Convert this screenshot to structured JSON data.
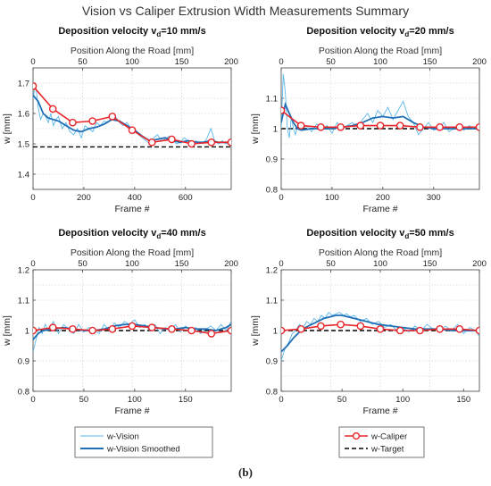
{
  "figure_title": "Vision vs Caliper Extrusion Width Measurements Summary",
  "caption": "(b)",
  "legends": [
    {
      "items": [
        {
          "label": "w-Vision",
          "color": "#5bb8ea",
          "style": "thin-line"
        },
        {
          "label": "w-Vision Smoothed",
          "color": "#1f6fb5",
          "style": "thick-line"
        }
      ]
    },
    {
      "items": [
        {
          "label": "w-Caliper",
          "color": "#e8262a",
          "style": "line-circle"
        },
        {
          "label": "w-Target",
          "color": "#000000",
          "style": "dashed"
        }
      ]
    }
  ],
  "colors": {
    "vision": "#5bb8ea",
    "smoothed": "#1f6fb5",
    "caliper": "#e8262a",
    "target": "#000000",
    "grid": "#d9d9d9"
  },
  "chart_data": [
    {
      "type": "line",
      "title": "Deposition velocity v_d=10 mm/s",
      "title_main": "Deposition velocity v",
      "title_sub": "d",
      "title_rest": "=10 mm/s",
      "xlabel": "Frame #",
      "ylabel": "w [mm]",
      "top_xlabel": "Position Along the Road [mm]",
      "xlim": [
        0,
        780
      ],
      "ylim": [
        1.35,
        1.75
      ],
      "xticks": [
        0,
        200,
        400,
        600
      ],
      "yticks": [
        1.4,
        1.5,
        1.6,
        1.7
      ],
      "ytick_labels": [
        "1.4",
        "1.5",
        "1.6",
        "1.7"
      ],
      "top_xticks": [
        0,
        50,
        100,
        150,
        200
      ],
      "top_xmax": 200,
      "target": 1.49,
      "caliper": {
        "x": [
          0,
          78,
          156,
          234,
          312,
          390,
          468,
          546,
          624,
          702,
          780
        ],
        "y": [
          1.69,
          1.615,
          1.57,
          1.575,
          1.59,
          1.545,
          1.505,
          1.515,
          1.5,
          1.505,
          1.505
        ]
      },
      "smoothed": {
        "x": [
          0,
          20,
          40,
          60,
          80,
          100,
          130,
          160,
          190,
          220,
          250,
          280,
          310,
          340,
          370,
          400,
          430,
          460,
          490,
          520,
          550,
          580,
          610,
          640,
          670,
          700,
          730,
          760,
          780
        ],
        "y": [
          1.66,
          1.64,
          1.6,
          1.585,
          1.58,
          1.575,
          1.56,
          1.545,
          1.54,
          1.55,
          1.555,
          1.565,
          1.58,
          1.575,
          1.56,
          1.545,
          1.525,
          1.51,
          1.515,
          1.52,
          1.51,
          1.505,
          1.51,
          1.505,
          1.505,
          1.51,
          1.505,
          1.505,
          1.505
        ]
      },
      "vision": {
        "x": [
          0,
          10,
          20,
          30,
          40,
          50,
          60,
          70,
          80,
          90,
          100,
          115,
          130,
          145,
          160,
          175,
          190,
          205,
          220,
          235,
          250,
          265,
          280,
          295,
          310,
          325,
          340,
          355,
          370,
          385,
          400,
          415,
          430,
          445,
          460,
          475,
          490,
          505,
          520,
          535,
          550,
          565,
          580,
          595,
          610,
          625,
          640,
          655,
          670,
          685,
          700,
          715,
          730,
          745,
          760,
          780
        ],
        "y": [
          1.65,
          1.7,
          1.62,
          1.58,
          1.6,
          1.59,
          1.57,
          1.6,
          1.56,
          1.58,
          1.59,
          1.55,
          1.57,
          1.54,
          1.53,
          1.55,
          1.52,
          1.56,
          1.55,
          1.54,
          1.57,
          1.56,
          1.575,
          1.57,
          1.585,
          1.59,
          1.57,
          1.56,
          1.57,
          1.55,
          1.55,
          1.53,
          1.52,
          1.51,
          1.5,
          1.52,
          1.53,
          1.51,
          1.515,
          1.525,
          1.51,
          1.5,
          1.505,
          1.52,
          1.51,
          1.5,
          1.51,
          1.505,
          1.5,
          1.52,
          1.55,
          1.51,
          1.5,
          1.51,
          1.5,
          1.505
        ]
      }
    },
    {
      "type": "line",
      "title": "Deposition velocity v_d=20 mm/s",
      "title_main": "Deposition velocity v",
      "title_sub": "d",
      "title_rest": "=20 mm/s",
      "xlabel": "Frame #",
      "ylabel": "w [mm]",
      "top_xlabel": "Position Along the Road [mm]",
      "xlim": [
        0,
        390
      ],
      "ylim": [
        0.8,
        1.2
      ],
      "xticks": [
        0,
        100,
        200,
        300
      ],
      "yticks": [
        0.8,
        0.9,
        1,
        1.1
      ],
      "ytick_labels": [
        "0.8",
        "0.9",
        "1",
        "1.1"
      ],
      "top_xticks": [
        0,
        50,
        100,
        150,
        200
      ],
      "top_xmax": 200,
      "target": 1.0,
      "caliper": {
        "x": [
          0,
          39,
          78,
          117,
          156,
          195,
          234,
          273,
          312,
          351,
          390
        ],
        "y": [
          1.06,
          1.01,
          1.005,
          1.005,
          1.01,
          1.01,
          1.01,
          1.005,
          1.005,
          1.005,
          1.005
        ]
      },
      "smoothed": {
        "x": [
          0,
          8,
          16,
          24,
          32,
          40,
          60,
          80,
          100,
          120,
          140,
          160,
          180,
          200,
          220,
          240,
          260,
          280,
          300,
          320,
          340,
          360,
          390
        ],
        "y": [
          1.02,
          1.08,
          1.05,
          1.02,
          1.0,
          0.995,
          1.0,
          1.0,
          1.0,
          1.005,
          1.01,
          1.02,
          1.035,
          1.04,
          1.035,
          1.04,
          1.02,
          1.005,
          1.0,
          1.0,
          1.0,
          1.0,
          1.0
        ]
      },
      "vision": {
        "x": [
          0,
          4,
          8,
          12,
          16,
          20,
          24,
          28,
          32,
          36,
          40,
          50,
          60,
          70,
          80,
          90,
          100,
          110,
          120,
          130,
          140,
          150,
          160,
          170,
          180,
          190,
          200,
          210,
          220,
          230,
          240,
          250,
          260,
          270,
          280,
          290,
          300,
          310,
          320,
          330,
          340,
          350,
          360,
          370,
          380,
          390
        ],
        "y": [
          1.0,
          1.18,
          1.12,
          1.0,
          0.97,
          1.04,
          1.0,
          0.98,
          1.01,
          0.995,
          1.0,
          1.01,
          0.99,
          1.015,
          0.995,
          1.01,
          0.985,
          1.02,
          1.0,
          1.01,
          1.02,
          1.005,
          1.03,
          1.05,
          1.02,
          1.06,
          1.04,
          1.07,
          1.03,
          1.06,
          1.09,
          1.04,
          1.02,
          0.98,
          1.0,
          1.02,
          0.995,
          1.0,
          1.02,
          0.99,
          1.0,
          1.005,
          0.995,
          1.01,
          1.0,
          1.005
        ]
      }
    },
    {
      "type": "line",
      "title": "Deposition velocity v_d=40 mm/s",
      "title_main": "Deposition velocity v",
      "title_sub": "d",
      "title_rest": "=40 mm/s",
      "xlabel": "Frame #",
      "ylabel": "w [mm]",
      "top_xlabel": "Position Along the Road [mm]",
      "xlim": [
        0,
        195
      ],
      "ylim": [
        0.8,
        1.2
      ],
      "xticks": [
        0,
        50,
        100,
        150
      ],
      "yticks": [
        0.8,
        0.9,
        1,
        1.1,
        1.2
      ],
      "ytick_labels": [
        "0.8",
        "0.9",
        "1",
        "1.1",
        "1.2"
      ],
      "top_xticks": [
        0,
        50,
        100,
        150,
        200
      ],
      "top_xmax": 200,
      "target": 1.0,
      "caliper": {
        "x": [
          0,
          19.5,
          39,
          58.5,
          78,
          97.5,
          117,
          136.5,
          156,
          175.5,
          195
        ],
        "y": [
          1.0,
          1.01,
          1.005,
          1.0,
          1.005,
          1.015,
          1.01,
          1.005,
          1.0,
          0.99,
          1.0
        ]
      },
      "smoothed": {
        "x": [
          0,
          5,
          10,
          20,
          30,
          40,
          50,
          60,
          70,
          80,
          90,
          100,
          110,
          120,
          130,
          140,
          150,
          160,
          170,
          180,
          190,
          195
        ],
        "y": [
          0.97,
          0.99,
          1.0,
          1.005,
          1.01,
          1.005,
          1.0,
          1.0,
          1.005,
          1.015,
          1.02,
          1.02,
          1.015,
          1.01,
          1.005,
          1.005,
          1.01,
          1.005,
          1.005,
          1.0,
          1.01,
          1.02
        ]
      },
      "vision": {
        "x": [
          0,
          3,
          6,
          9,
          12,
          15,
          20,
          25,
          30,
          35,
          40,
          45,
          50,
          55,
          60,
          65,
          70,
          75,
          80,
          85,
          90,
          95,
          100,
          105,
          110,
          115,
          120,
          125,
          130,
          135,
          140,
          145,
          150,
          155,
          160,
          165,
          170,
          175,
          180,
          185,
          190,
          195
        ],
        "y": [
          0.93,
          0.97,
          1.01,
          0.99,
          1.02,
          1.0,
          1.03,
          0.99,
          1.02,
          1.005,
          0.99,
          1.02,
          0.995,
          1.01,
          1.0,
          0.99,
          1.02,
          1.0,
          1.025,
          1.01,
          1.03,
          1.02,
          1.035,
          1.01,
          1.02,
          1.0,
          1.02,
          0.99,
          1.01,
          1.0,
          1.02,
          0.995,
          1.015,
          1.0,
          1.01,
          0.99,
          1.005,
          1.015,
          1.0,
          1.02,
          1.0,
          1.03
        ]
      }
    },
    {
      "type": "line",
      "title": "Deposition velocity v_d=50 mm/s",
      "title_main": "Deposition velocity v",
      "title_sub": "d",
      "title_rest": "=50 mm/s",
      "xlabel": "Frame #",
      "ylabel": "w [mm]",
      "top_xlabel": "Position Along the Road [mm]",
      "xlim": [
        0,
        163
      ],
      "ylim": [
        0.8,
        1.2
      ],
      "xticks": [
        0,
        50,
        100,
        150
      ],
      "yticks": [
        0.8,
        0.9,
        1,
        1.1,
        1.2
      ],
      "ytick_labels": [
        "0.8",
        "0.9",
        "1",
        "1.1",
        "1.2"
      ],
      "top_xticks": [
        0,
        50,
        100,
        150,
        200
      ],
      "top_xmax": 200,
      "target": 1.0,
      "caliper": {
        "x": [
          0,
          16.3,
          32.6,
          48.9,
          65.2,
          81.5,
          97.8,
          114.1,
          130.4,
          146.7,
          163
        ],
        "y": [
          1.0,
          1.005,
          1.015,
          1.02,
          1.015,
          1.005,
          1.0,
          1.0,
          1.005,
          1.005,
          1.0
        ]
      },
      "smoothed": {
        "x": [
          0,
          5,
          10,
          15,
          20,
          25,
          30,
          35,
          40,
          45,
          50,
          55,
          60,
          70,
          80,
          90,
          100,
          110,
          120,
          130,
          140,
          150,
          160,
          163
        ],
        "y": [
          0.93,
          0.95,
          0.975,
          0.995,
          1.01,
          1.02,
          1.03,
          1.04,
          1.045,
          1.05,
          1.05,
          1.045,
          1.04,
          1.03,
          1.02,
          1.015,
          1.01,
          1.005,
          1.005,
          1.005,
          1.0,
          1.0,
          1.0,
          1.0
        ]
      },
      "vision": {
        "x": [
          0,
          3,
          6,
          9,
          12,
          15,
          18,
          21,
          24,
          27,
          30,
          33,
          36,
          39,
          42,
          45,
          48,
          51,
          54,
          57,
          60,
          65,
          70,
          75,
          80,
          85,
          90,
          95,
          100,
          105,
          110,
          115,
          120,
          125,
          130,
          135,
          140,
          145,
          150,
          155,
          160,
          163
        ],
        "y": [
          0.9,
          0.94,
          0.96,
          0.99,
          1.0,
          1.02,
          1.01,
          1.03,
          1.02,
          1.04,
          1.03,
          1.05,
          1.04,
          1.06,
          1.05,
          1.055,
          1.06,
          1.05,
          1.055,
          1.045,
          1.05,
          1.03,
          1.04,
          1.02,
          1.03,
          1.01,
          1.02,
          1.0,
          1.01,
          0.995,
          1.015,
          1.0,
          1.02,
          1.005,
          1.0,
          1.015,
          1.0,
          1.02,
          0.99,
          1.01,
          1.0,
          0.98
        ]
      }
    }
  ]
}
